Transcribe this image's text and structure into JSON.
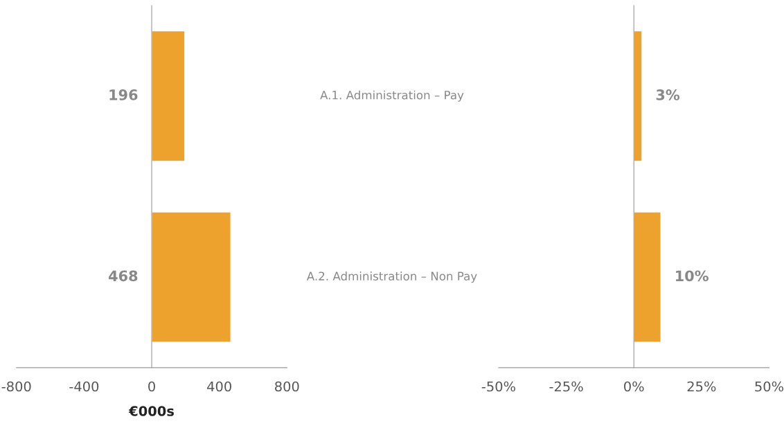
{
  "chart_data": [
    {
      "type": "bar",
      "orientation": "horizontal",
      "categories": [
        "A.1. Administration – Pay",
        "A.2. Administration – Non Pay"
      ],
      "values": [
        196,
        468
      ],
      "color": "#eea22e",
      "xlim": [
        -800,
        800
      ],
      "xticks": [
        -800,
        -400,
        0,
        400,
        800
      ],
      "xlabel": "€000s",
      "data_labels": true
    },
    {
      "type": "bar",
      "orientation": "horizontal",
      "categories": [
        null,
        null
      ],
      "values": [
        3,
        10
      ],
      "value_labels": [
        "3%",
        "10%"
      ],
      "color": "#eea22e",
      "xlim": [
        -50,
        50
      ],
      "xticks": [
        {
          "value": -50,
          "label": "-50%"
        },
        {
          "value": -25,
          "label": "-25%"
        },
        {
          "value": 0,
          "label": "0%"
        },
        {
          "value": 25,
          "label": "25%"
        },
        {
          "value": 50,
          "label": "50%"
        }
      ]
    }
  ]
}
